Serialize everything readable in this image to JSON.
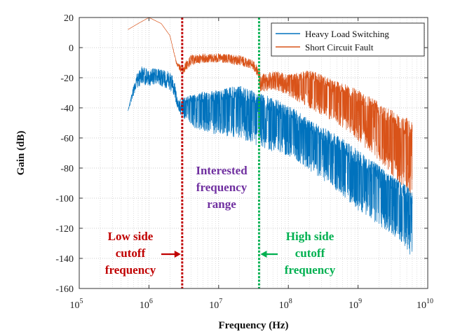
{
  "chart_data": {
    "type": "line",
    "xlabel": "Frequency (Hz)",
    "ylabel": "Gain (dB)",
    "x_scale": "log",
    "xlim": [
      100000,
      10000000000
    ],
    "ylim": [
      -160,
      20
    ],
    "x_tick_values": [
      100000,
      1000000,
      10000000,
      100000000,
      1000000000,
      10000000000
    ],
    "x_ticks": [
      {
        "base": "10",
        "exp": "5"
      },
      {
        "base": "10",
        "exp": "6"
      },
      {
        "base": "10",
        "exp": "7"
      },
      {
        "base": "10",
        "exp": "8"
      },
      {
        "base": "10",
        "exp": "9"
      },
      {
        "base": "10",
        "exp": "10"
      }
    ],
    "y_ticks": [
      20,
      0,
      -20,
      -40,
      -60,
      -80,
      -100,
      -120,
      -140,
      -160
    ],
    "grid": true,
    "grid_style": "dotted",
    "legend_position": "top-right",
    "series": [
      {
        "name": "Heavy Load Switching",
        "color": "#0072BD",
        "envelope": {
          "x": [
            500000,
            650000,
            800000,
            1000000,
            1300000,
            1600000,
            2000000,
            2300000,
            2600000,
            3000000,
            5000000,
            10000000,
            20000000,
            35000000,
            50000000,
            100000000,
            200000000,
            500000000,
            1000000000,
            2000000000,
            4000000000,
            6000000000
          ],
          "upper": [
            -42,
            -18,
            -12,
            -15,
            -12,
            -15,
            -16,
            -20,
            -35,
            -33,
            -30,
            -28,
            -25,
            -30,
            -32,
            -38,
            -48,
            -58,
            -68,
            -78,
            -88,
            -95
          ],
          "lower": [
            -42,
            -28,
            -24,
            -26,
            -24,
            -26,
            -28,
            -32,
            -42,
            -46,
            -55,
            -58,
            -60,
            -65,
            -68,
            -72,
            -82,
            -95,
            -108,
            -118,
            -128,
            -140
          ]
        }
      },
      {
        "name": "Short Circuit Fault",
        "color": "#D95319",
        "envelope": {
          "x": [
            500000,
            700000,
            1000000,
            1500000,
            2000000,
            2500000,
            3000000,
            4000000,
            6000000,
            10000000,
            20000000,
            30000000,
            37000000,
            40000000,
            60000000,
            100000000,
            200000000,
            400000000,
            700000000,
            1000000000,
            2000000000,
            4000000000,
            6000000000
          ],
          "upper": [
            12,
            16,
            20,
            16,
            8,
            -10,
            -12,
            -5,
            -4,
            -4,
            -5,
            -8,
            -12,
            -18,
            -15,
            -18,
            -15,
            -20,
            -25,
            -28,
            -35,
            -45,
            -48
          ],
          "lower": [
            12,
            16,
            20,
            16,
            8,
            -12,
            -18,
            -12,
            -10,
            -10,
            -12,
            -14,
            -20,
            -30,
            -28,
            -32,
            -40,
            -48,
            -55,
            -62,
            -75,
            -90,
            -100
          ]
        }
      }
    ],
    "vlines": [
      {
        "x": 3000000,
        "color": "#C00000",
        "style": "dotted"
      },
      {
        "x": 38000000,
        "color": "#00B050",
        "style": "dotted"
      }
    ],
    "annotations": {
      "low_side": {
        "lines": [
          "Low side",
          "cutoff",
          "frequency"
        ],
        "color": "#C00000",
        "points_to": 3000000,
        "arrow": "right"
      },
      "interested": {
        "lines": [
          "Interested",
          "frequency",
          "range"
        ],
        "color": "#7030A0"
      },
      "high_side": {
        "lines": [
          "High side",
          "cutoff",
          "frequency"
        ],
        "color": "#00B050",
        "points_to": 38000000,
        "arrow": "left"
      }
    }
  }
}
